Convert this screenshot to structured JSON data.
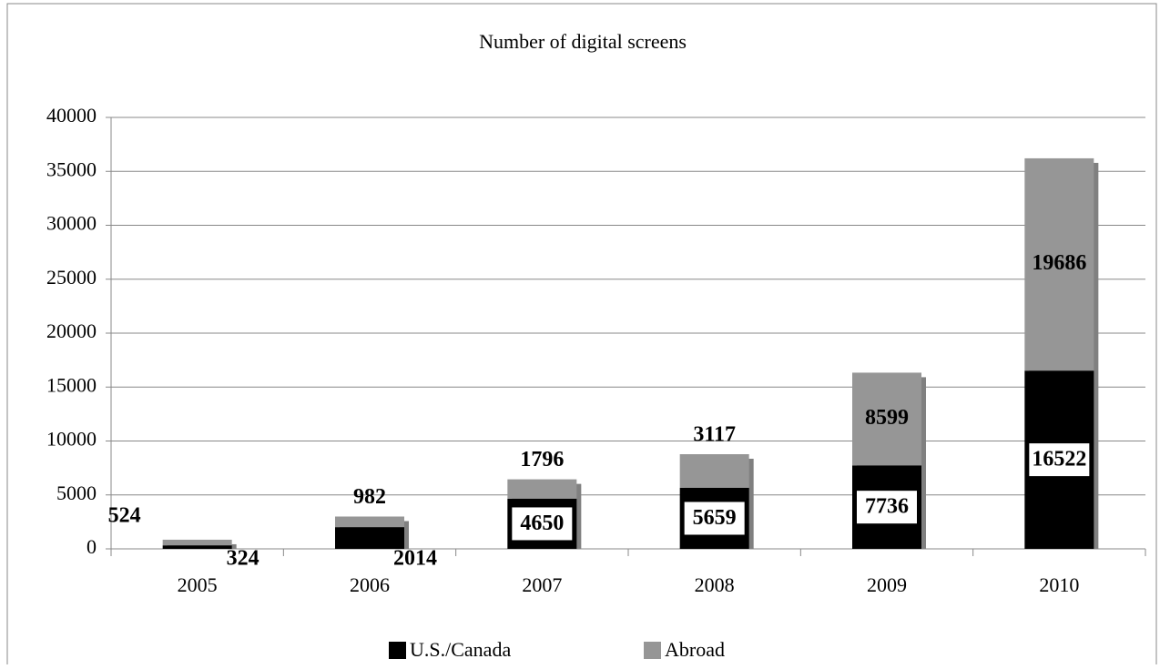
{
  "chart_data": {
    "type": "stacked_bar",
    "title": "Number of digital screens",
    "categories": [
      "2005",
      "2006",
      "2007",
      "2008",
      "2009",
      "2010"
    ],
    "series": [
      {
        "name": "U.S./Canada",
        "color": "#000000",
        "values": [
          324,
          2014,
          4650,
          5659,
          7736,
          16522
        ]
      },
      {
        "name": "Abroad",
        "color": "#969696",
        "values": [
          524,
          982,
          1796,
          3117,
          8599,
          19686
        ]
      }
    ],
    "ylim": [
      0,
      40000
    ],
    "yticks": [
      0,
      5000,
      10000,
      15000,
      20000,
      25000,
      30000,
      35000,
      40000
    ],
    "grid": true,
    "legend": "bottom"
  }
}
